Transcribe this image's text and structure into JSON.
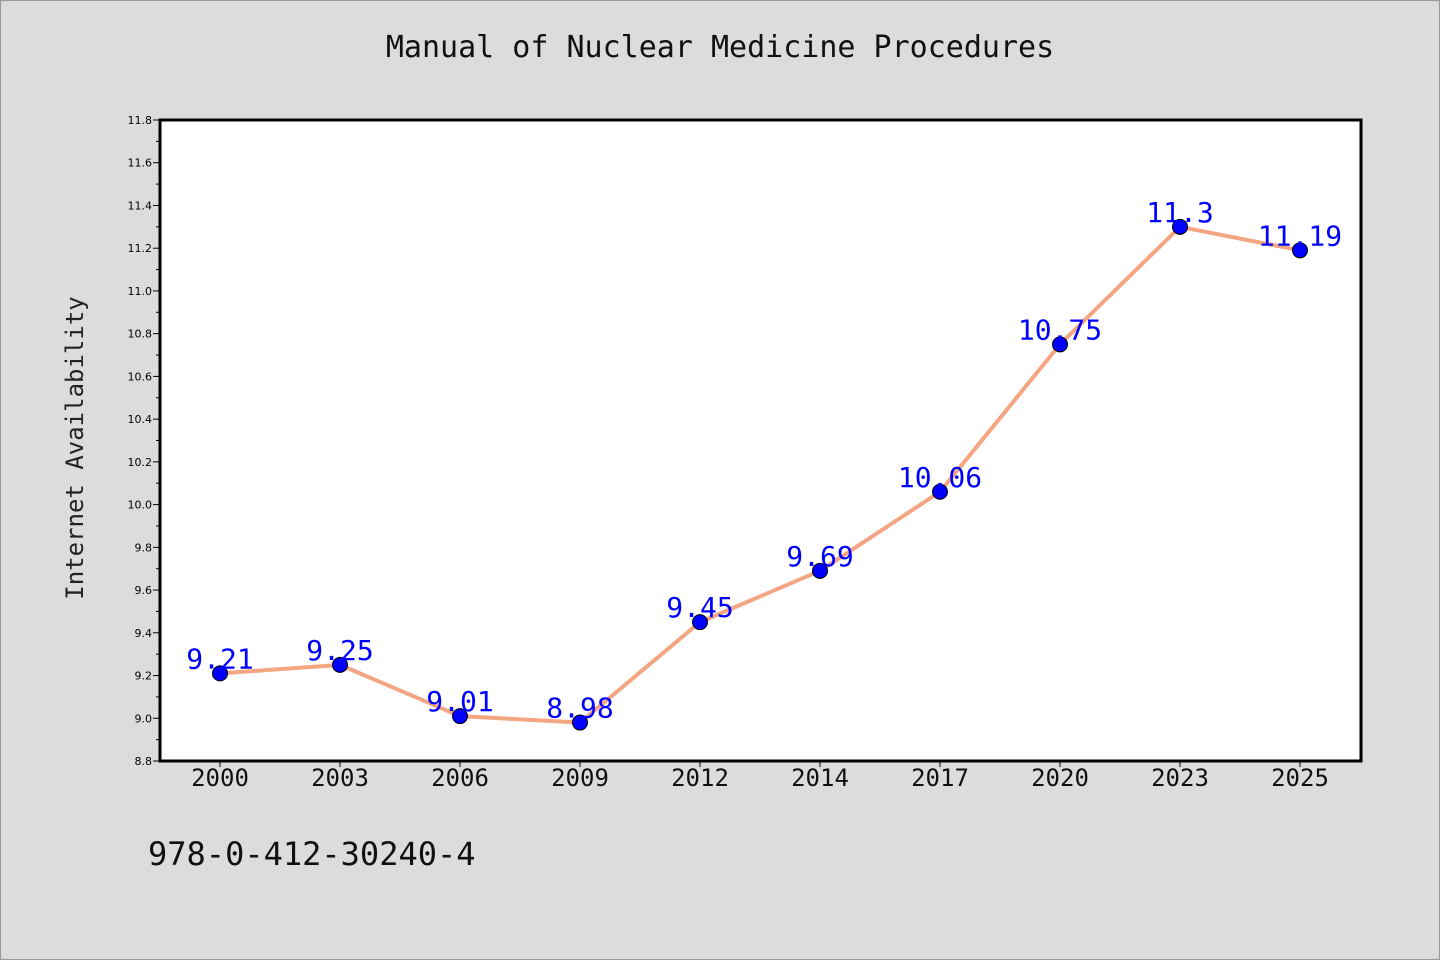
{
  "chart_data": {
    "type": "line",
    "title": "Manual of Nuclear Medicine Procedures",
    "xlabel": "",
    "ylabel": "Internet Availability",
    "categories": [
      "2000",
      "2003",
      "2006",
      "2009",
      "2012",
      "2014",
      "2017",
      "2020",
      "2023",
      "2025"
    ],
    "series": [
      {
        "values": [
          9.21,
          9.25,
          9.01,
          8.98,
          9.45,
          9.69,
          10.06,
          10.75,
          11.3,
          11.19
        ],
        "labels": [
          "9.21",
          "9.25",
          "9.01",
          "8.98",
          "9.45",
          "9.69",
          "10.06",
          "10.75",
          "11.3",
          "11.19"
        ]
      }
    ],
    "ylim": [
      8.8,
      11.8
    ],
    "yticks": [
      "8.8",
      "9.0",
      "9.2",
      "9.4",
      "9.6",
      "9.8",
      "10.0",
      "10.2",
      "10.4",
      "10.6",
      "10.8",
      "11.0",
      "11.2",
      "11.4",
      "11.6",
      "11.8"
    ],
    "grid": false,
    "legend": "none",
    "colors": {
      "line": "#f4a582",
      "marker": "#0000ff",
      "data_label": "#0000ff",
      "plot_bg": "#ffffff",
      "figure_bg": "#dcdcdc"
    }
  },
  "footer": {
    "isbn": "978-0-412-30240-4"
  }
}
